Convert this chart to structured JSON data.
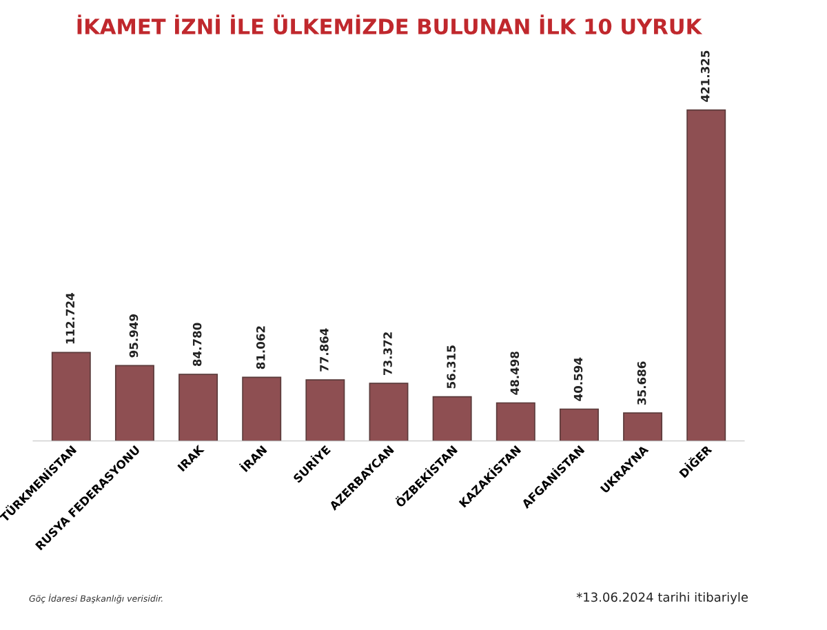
{
  "chart_data": {
    "type": "bar",
    "title": "İKAMET İZNİ İLE ÜLKEMİZDE BULUNAN İLK 10 UYRUK",
    "categories": [
      "TÜRKMENİSTAN",
      "RUSYA FEDERASYONU",
      "IRAK",
      "İRAN",
      "SURİYE",
      "AZERBAYCAN",
      "ÖZBEKİSTAN",
      "KAZAKİSTAN",
      "AFGANİSTAN",
      "UKRAYNA",
      "DİĞER"
    ],
    "values": [
      112724,
      95949,
      84780,
      81062,
      77864,
      73372,
      56315,
      48498,
      40594,
      35686,
      421325
    ],
    "value_labels": [
      "112.724",
      "95.949",
      "84.780",
      "81.062",
      "77.864",
      "73.372",
      "56.315",
      "48.498",
      "40.594",
      "35.686",
      "421.325"
    ],
    "color": "#8e4f52",
    "annotations": [
      "Göç İdaresi Başkanlığı verisidir.",
      "*13.06.2024 tarihi itibariyle"
    ],
    "grid": false,
    "legend": false
  }
}
